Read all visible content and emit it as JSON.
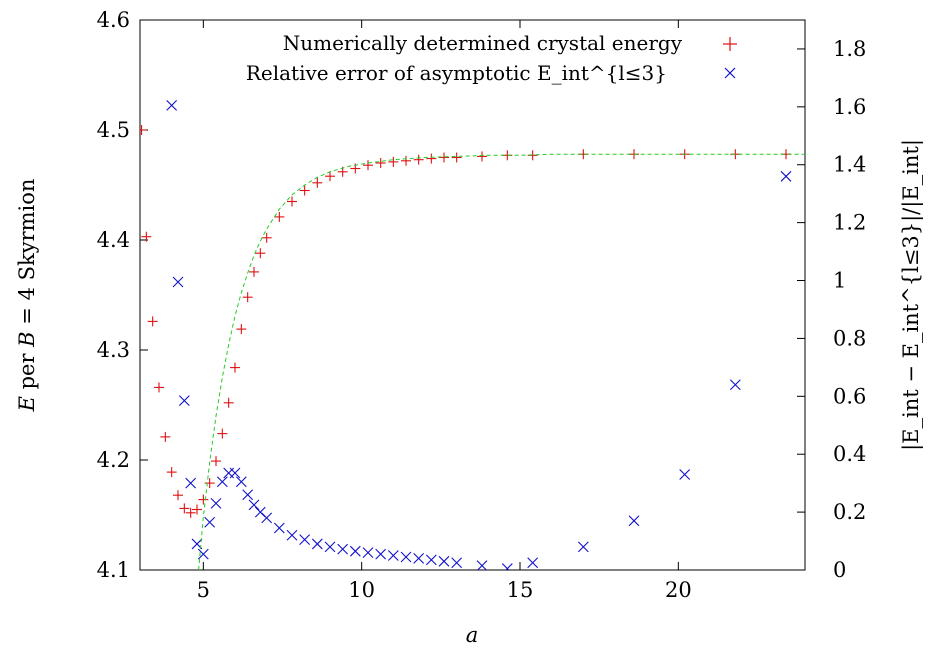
{
  "chart_data": {
    "type": "scatter",
    "xlabel": "a",
    "ylabel_left": {
      "main": "E",
      "text": " per ",
      "b": "B",
      "tail": " = 4 Skyrmion"
    },
    "ylabel_right": "|E_int − E_int^{l≤3}|/|E_int|",
    "xlim": [
      3,
      24
    ],
    "ylim_left": [
      4.1,
      4.6
    ],
    "ylim_right": [
      0,
      1.9
    ],
    "x_ticks": [
      "5",
      "10",
      "15",
      "20"
    ],
    "y_left_ticks": [
      "4.1",
      "4.2",
      "4.3",
      "4.4",
      "4.5",
      "4.6"
    ],
    "y_right_ticks": [
      "0",
      "0.2",
      "0.4",
      "0.6",
      "0.8",
      "1",
      "1.2",
      "1.4",
      "1.6",
      "1.8"
    ],
    "grid": false,
    "legend_position": "top-right",
    "series": [
      {
        "name": "Numerically determined crystal energy",
        "axis": "left",
        "marker": "plus",
        "color": "#dd1111",
        "points": [
          [
            3.05,
            4.5
          ],
          [
            3.2,
            4.403
          ],
          [
            3.4,
            4.326
          ],
          [
            3.6,
            4.266
          ],
          [
            3.8,
            4.221
          ],
          [
            4.0,
            4.189
          ],
          [
            4.2,
            4.168
          ],
          [
            4.4,
            4.156
          ],
          [
            4.6,
            4.152
          ],
          [
            4.8,
            4.155
          ],
          [
            5.0,
            4.164
          ],
          [
            5.2,
            4.179
          ],
          [
            5.4,
            4.199
          ],
          [
            5.6,
            4.224
          ],
          [
            5.8,
            4.252
          ],
          [
            6.0,
            4.284
          ],
          [
            6.2,
            4.319
          ],
          [
            6.4,
            4.348
          ],
          [
            6.6,
            4.371
          ],
          [
            6.8,
            4.388
          ],
          [
            7.0,
            4.402
          ],
          [
            7.4,
            4.421
          ],
          [
            7.8,
            4.435
          ],
          [
            8.2,
            4.445
          ],
          [
            8.6,
            4.452
          ],
          [
            9.0,
            4.458
          ],
          [
            9.4,
            4.462
          ],
          [
            9.8,
            4.465
          ],
          [
            10.2,
            4.468
          ],
          [
            10.6,
            4.47
          ],
          [
            11.0,
            4.471
          ],
          [
            11.4,
            4.472
          ],
          [
            11.8,
            4.473
          ],
          [
            12.2,
            4.474
          ],
          [
            12.6,
            4.475
          ],
          [
            13.0,
            4.475
          ],
          [
            13.8,
            4.476
          ],
          [
            14.6,
            4.477
          ],
          [
            15.4,
            4.477
          ],
          [
            17.0,
            4.478
          ],
          [
            18.6,
            4.478
          ],
          [
            20.2,
            4.478
          ],
          [
            21.8,
            4.478
          ],
          [
            23.4,
            4.478
          ]
        ]
      },
      {
        "name": "Relative error of asymptotic E_int^{l≤3}",
        "axis": "right",
        "marker": "cross",
        "color": "#1111cc",
        "points": [
          [
            4.0,
            1.605
          ],
          [
            4.2,
            0.995
          ],
          [
            4.4,
            0.585
          ],
          [
            4.6,
            0.3
          ],
          [
            4.8,
            0.09
          ],
          [
            5.0,
            0.055
          ],
          [
            5.2,
            0.165
          ],
          [
            5.4,
            0.23
          ],
          [
            5.6,
            0.305
          ],
          [
            5.8,
            0.335
          ],
          [
            6.0,
            0.335
          ],
          [
            6.2,
            0.305
          ],
          [
            6.4,
            0.26
          ],
          [
            6.6,
            0.225
          ],
          [
            6.8,
            0.2
          ],
          [
            7.0,
            0.18
          ],
          [
            7.4,
            0.145
          ],
          [
            7.8,
            0.12
          ],
          [
            8.2,
            0.105
          ],
          [
            8.6,
            0.09
          ],
          [
            9.0,
            0.08
          ],
          [
            9.4,
            0.072
          ],
          [
            9.8,
            0.065
          ],
          [
            10.2,
            0.06
          ],
          [
            10.6,
            0.055
          ],
          [
            11.0,
            0.05
          ],
          [
            11.4,
            0.045
          ],
          [
            11.8,
            0.04
          ],
          [
            12.2,
            0.035
          ],
          [
            12.6,
            0.03
          ],
          [
            13.0,
            0.025
          ],
          [
            13.8,
            0.015
          ],
          [
            14.6,
            0.005
          ],
          [
            15.4,
            0.025
          ],
          [
            17.0,
            0.08
          ],
          [
            18.6,
            0.17
          ],
          [
            20.2,
            0.33
          ],
          [
            21.8,
            0.64
          ],
          [
            23.4,
            1.36
          ]
        ]
      },
      {
        "name": "",
        "axis": "left",
        "marker": "dashed-line",
        "color": "#22cc22",
        "points": [
          [
            4.85,
            4.1
          ],
          [
            5.0,
            4.148
          ],
          [
            5.2,
            4.198
          ],
          [
            5.4,
            4.24
          ],
          [
            5.6,
            4.275
          ],
          [
            5.8,
            4.305
          ],
          [
            6.0,
            4.331
          ],
          [
            6.2,
            4.352
          ],
          [
            6.4,
            4.37
          ],
          [
            6.6,
            4.386
          ],
          [
            6.8,
            4.399
          ],
          [
            7.0,
            4.41
          ],
          [
            7.4,
            4.428
          ],
          [
            7.8,
            4.441
          ],
          [
            8.2,
            4.45
          ],
          [
            8.6,
            4.457
          ],
          [
            9.0,
            4.462
          ],
          [
            9.6,
            4.467
          ],
          [
            10.2,
            4.47
          ],
          [
            11.0,
            4.473
          ],
          [
            12.0,
            4.475
          ],
          [
            13.0,
            4.476
          ],
          [
            14.0,
            4.477
          ],
          [
            15.0,
            4.477
          ],
          [
            16.0,
            4.478
          ],
          [
            18.0,
            4.478
          ],
          [
            20.0,
            4.478
          ],
          [
            22.0,
            4.478
          ],
          [
            24.0,
            4.478
          ]
        ]
      }
    ]
  }
}
